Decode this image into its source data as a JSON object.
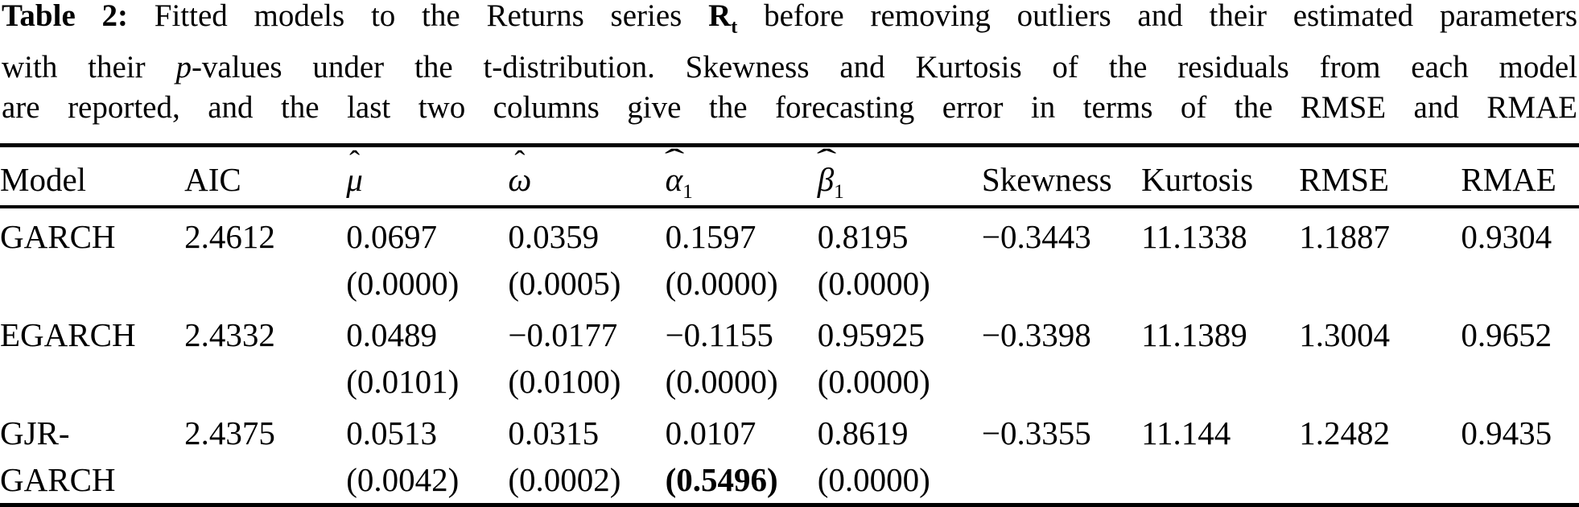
{
  "caption": {
    "line1": {
      "label": "Table 2:",
      "a": " Fitted models to the Returns series ",
      "rsym": "R",
      "rsub": "t",
      "b": " before removing outliers and their estimated parameters"
    },
    "line2": {
      "a": "with their ",
      "p": "p",
      "b": "-values under the t-distribution. Skewness and Kurtosis of the residuals from each model"
    },
    "line3": {
      "text": "are reported, and the last two columns give the forecasting error in terms of the RMSE and RMAE"
    }
  },
  "table": {
    "headers": [
      {
        "t": "Model"
      },
      {
        "t": "AIC"
      },
      {
        "t": "μ",
        "hat": "ˆ"
      },
      {
        "t": "ω",
        "hat": "ˆ"
      },
      {
        "t": "α",
        "hat": "ˆ",
        "sub": "1"
      },
      {
        "t": "β",
        "hat": "ˆ",
        "sub": "1"
      },
      {
        "t": "Skewness"
      },
      {
        "t": "Kurtosis"
      },
      {
        "t": "RMSE"
      },
      {
        "t": "RMAE"
      }
    ],
    "rows": [
      {
        "model": "GARCH",
        "aic": "2.4612",
        "mu": {
          "v": "0.0697",
          "p": "(0.0000)"
        },
        "omega": {
          "v": "0.0359",
          "p": "(0.0005)"
        },
        "alpha": {
          "v": "0.1597",
          "p": "(0.0000)"
        },
        "beta": {
          "v": "0.8195",
          "p": "(0.0000)"
        },
        "skew": "−0.3443",
        "kurt": "11.1338",
        "rmse": "1.1887",
        "rmae": "0.9304"
      },
      {
        "model": "EGARCH",
        "aic": "2.4332",
        "mu": {
          "v": "0.0489",
          "p": "(0.0101)"
        },
        "omega": {
          "v": "−0.0177",
          "p": "(0.0100)"
        },
        "alpha": {
          "v": "−0.1155",
          "p": "(0.0000)"
        },
        "beta": {
          "v": "0.95925",
          "p": "(0.0000)"
        },
        "skew": "−0.3398",
        "kurt": "11.1389",
        "rmse": "1.3004",
        "rmae": "0.9652"
      },
      {
        "model": "GJR-",
        "model2": "GARCH",
        "aic": "2.4375",
        "mu": {
          "v": "0.0513",
          "p": "(0.0042)"
        },
        "omega": {
          "v": "0.0315",
          "p": "(0.0002)"
        },
        "alpha": {
          "v": "0.0107",
          "p": "(0.5496)",
          "pBold": true
        },
        "beta": {
          "v": "0.8619",
          "p": "(0.0000)"
        },
        "skew": "−0.3355",
        "kurt": "11.144",
        "rmse": "1.2482",
        "rmae": "0.9435"
      }
    ]
  }
}
